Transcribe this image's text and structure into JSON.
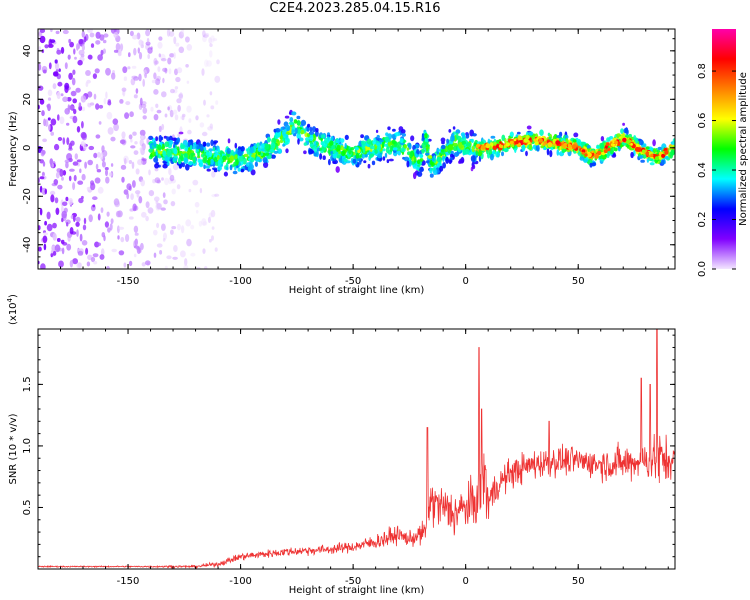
{
  "figure": {
    "title": "C2E4.2023.285.04.15.R16"
  },
  "chart_data": [
    {
      "type": "heatmap",
      "title": "C2E4.2023.285.04.15.R16",
      "xlabel": "Height of straight line (km)",
      "ylabel": "Frequency (Hz)",
      "xlim": [
        -190,
        93
      ],
      "ylim": [
        -50,
        49
      ],
      "xticks": [
        -150,
        -100,
        -50,
        0,
        50
      ],
      "yticks": [
        -40,
        -20,
        0,
        20,
        40
      ],
      "xtick_labels": [
        "-150",
        "-100",
        "-50",
        "0",
        "50"
      ],
      "ytick_labels": [
        "-40",
        "-20",
        "0",
        "20",
        "40"
      ],
      "colorbar": {
        "label": "Normalized spectral amplitude",
        "range": [
          0,
          0.97
        ],
        "ticks": [
          0.0,
          0.2,
          0.4,
          0.6,
          0.8
        ],
        "tick_labels": [
          "0.0",
          "0.2",
          "0.4",
          "0.6",
          "0.8"
        ],
        "colormap": [
          "#f3e6ff",
          "#8000ff",
          "#0000ff",
          "#00ffff",
          "#00ff00",
          "#ffff00",
          "#ff8000",
          "#ff0000",
          "#ff00aa"
        ]
      },
      "ridge_center_hz": {
        "x": [
          -140,
          -130,
          -120,
          -110,
          -100,
          -90,
          -80,
          -76,
          -70,
          -60,
          -50,
          -40,
          -30,
          -25,
          -20,
          -18,
          -15,
          -10,
          -5,
          0,
          10,
          20,
          30,
          40,
          50,
          55,
          60,
          70,
          75,
          80,
          85,
          90,
          93
        ],
        "y": [
          -1,
          -2,
          -3,
          -4,
          -5,
          -2,
          5,
          10,
          4,
          0,
          -2,
          0,
          2,
          -2,
          -6,
          5,
          -8,
          -3,
          3,
          0,
          0,
          2,
          3,
          2,
          0,
          -3,
          -2,
          4,
          1,
          -2,
          -4,
          -1,
          0
        ]
      },
      "noise_region_x": [
        -190,
        -110
      ],
      "grid": false,
      "legend": "none"
    },
    {
      "type": "line",
      "xlabel": "Height of straight line (km)",
      "ylabel": "SNR (10 * v/v)",
      "yscale_label": "(x10",
      "yscale_exp": "4",
      "yscale_close": ")",
      "xlim": [
        -190,
        93
      ],
      "ylim": [
        0,
        1.95
      ],
      "xticks": [
        -150,
        -100,
        -50,
        0,
        50
      ],
      "yticks": [
        0.5,
        1.0,
        1.5
      ],
      "xtick_labels": [
        "-150",
        "-100",
        "-50",
        "0",
        "50"
      ],
      "ytick_labels": [
        "0.5",
        "1.0",
        "1.5"
      ],
      "color": "#ee3333",
      "envelope": {
        "x": [
          -190,
          -150,
          -120,
          -110,
          -100,
          -80,
          -60,
          -50,
          -40,
          -35,
          -30,
          -25,
          -18,
          -16,
          -10,
          -5,
          0,
          5,
          8,
          10,
          15,
          20,
          30,
          40,
          50,
          60,
          70,
          80,
          85,
          90,
          93
        ],
        "mean": [
          0.02,
          0.02,
          0.02,
          0.04,
          0.1,
          0.14,
          0.16,
          0.18,
          0.22,
          0.25,
          0.28,
          0.24,
          0.3,
          0.55,
          0.5,
          0.45,
          0.5,
          0.55,
          0.8,
          0.55,
          0.7,
          0.78,
          0.85,
          0.88,
          0.88,
          0.85,
          0.86,
          0.88,
          0.9,
          0.88,
          0.9
        ],
        "spread": [
          0.01,
          0.01,
          0.02,
          0.04,
          0.06,
          0.07,
          0.08,
          0.09,
          0.12,
          0.16,
          0.14,
          0.12,
          0.2,
          0.4,
          0.35,
          0.4,
          0.35,
          0.4,
          0.8,
          0.35,
          0.25,
          0.25,
          0.25,
          0.25,
          0.22,
          0.25,
          0.3,
          0.3,
          0.5,
          0.35,
          0.25
        ]
      },
      "peaks": [
        {
          "x": -17,
          "y": 1.15
        },
        {
          "x": 6,
          "y": 1.8
        },
        {
          "x": 7,
          "y": 1.3
        },
        {
          "x": 37,
          "y": 1.2
        },
        {
          "x": 78,
          "y": 1.55
        },
        {
          "x": 82,
          "y": 1.5
        },
        {
          "x": 85,
          "y": 2.0
        }
      ],
      "grid": false,
      "legend": "none"
    }
  ]
}
